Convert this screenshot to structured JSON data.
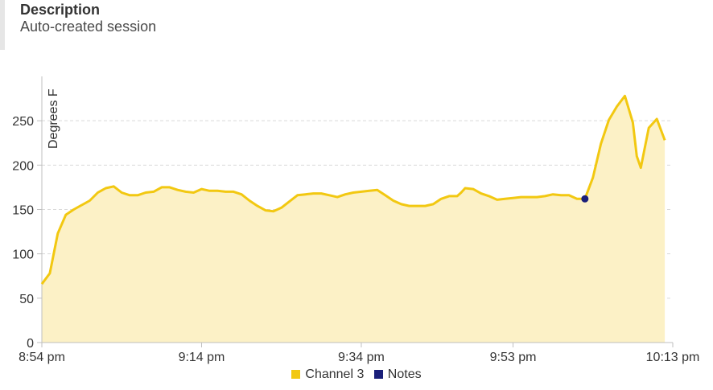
{
  "description": {
    "heading": "Description",
    "text": "Auto-created session"
  },
  "chart_data": {
    "type": "area",
    "title": "",
    "xlabel": "",
    "ylabel": "Degrees F",
    "ylim": [
      0,
      300
    ],
    "yticks": [
      0,
      50,
      100,
      150,
      200,
      250
    ],
    "grid": true,
    "legend_position": "bottom",
    "x_tick_labels": [
      "8:54 pm",
      "9:14 pm",
      "9:34 pm",
      "9:53 pm",
      "10:13 pm"
    ],
    "x_tick_minutes": [
      0,
      20,
      40,
      59,
      79
    ],
    "colors": {
      "series": "#f2c811",
      "fill": "#fcf1c6",
      "notes": "#1a1f7a",
      "grid": "#d9d9d9"
    },
    "series": [
      {
        "name": "Channel 3",
        "points": [
          [
            0.0,
            66
          ],
          [
            1.0,
            78
          ],
          [
            2.0,
            123
          ],
          [
            3.0,
            144
          ],
          [
            4.0,
            150
          ],
          [
            5.0,
            155
          ],
          [
            6.0,
            160
          ],
          [
            7.0,
            169
          ],
          [
            8.0,
            174
          ],
          [
            9.0,
            176
          ],
          [
            10.0,
            169
          ],
          [
            11.0,
            166
          ],
          [
            12.0,
            166
          ],
          [
            13.0,
            169
          ],
          [
            14.0,
            170
          ],
          [
            15.0,
            175
          ],
          [
            16.0,
            175
          ],
          [
            17.0,
            172
          ],
          [
            18.0,
            170
          ],
          [
            19.0,
            169
          ],
          [
            20.0,
            173
          ],
          [
            21.0,
            171
          ],
          [
            22.0,
            171
          ],
          [
            23.0,
            170
          ],
          [
            24.0,
            170
          ],
          [
            25.0,
            167
          ],
          [
            26.0,
            160
          ],
          [
            27.0,
            154
          ],
          [
            28.0,
            149
          ],
          [
            29.0,
            148
          ],
          [
            30.0,
            152
          ],
          [
            31.0,
            159
          ],
          [
            32.0,
            166
          ],
          [
            33.0,
            167
          ],
          [
            34.0,
            168
          ],
          [
            35.0,
            168
          ],
          [
            36.0,
            166
          ],
          [
            37.0,
            164
          ],
          [
            38.0,
            167
          ],
          [
            39.0,
            169
          ],
          [
            40.0,
            170
          ],
          [
            41.0,
            171
          ],
          [
            42.0,
            172
          ],
          [
            43.0,
            166
          ],
          [
            44.0,
            160
          ],
          [
            45.0,
            156
          ],
          [
            46.0,
            154
          ],
          [
            47.0,
            154
          ],
          [
            48.0,
            154
          ],
          [
            49.0,
            156
          ],
          [
            50.0,
            162
          ],
          [
            51.0,
            165
          ],
          [
            52.0,
            165
          ],
          [
            52.5,
            169
          ],
          [
            53.0,
            174
          ],
          [
            54.0,
            173
          ],
          [
            55.0,
            168
          ],
          [
            56.0,
            165
          ],
          [
            57.0,
            161
          ],
          [
            58.0,
            162
          ],
          [
            59.0,
            163
          ],
          [
            60.0,
            164
          ],
          [
            61.0,
            164
          ],
          [
            62.0,
            164
          ],
          [
            63.0,
            165
          ],
          [
            64.0,
            167
          ],
          [
            65.0,
            166
          ],
          [
            66.0,
            166
          ],
          [
            67.0,
            162
          ],
          [
            68.0,
            162
          ],
          [
            69.0,
            186
          ],
          [
            70.0,
            224
          ],
          [
            71.0,
            251
          ],
          [
            72.0,
            266
          ],
          [
            73.0,
            278
          ],
          [
            74.0,
            248
          ],
          [
            74.5,
            210
          ],
          [
            75.0,
            197
          ],
          [
            76.0,
            242
          ],
          [
            77.0,
            252
          ],
          [
            78.0,
            228
          ]
        ]
      },
      {
        "name": "Notes",
        "points": [
          [
            68.0,
            162
          ]
        ]
      }
    ]
  }
}
